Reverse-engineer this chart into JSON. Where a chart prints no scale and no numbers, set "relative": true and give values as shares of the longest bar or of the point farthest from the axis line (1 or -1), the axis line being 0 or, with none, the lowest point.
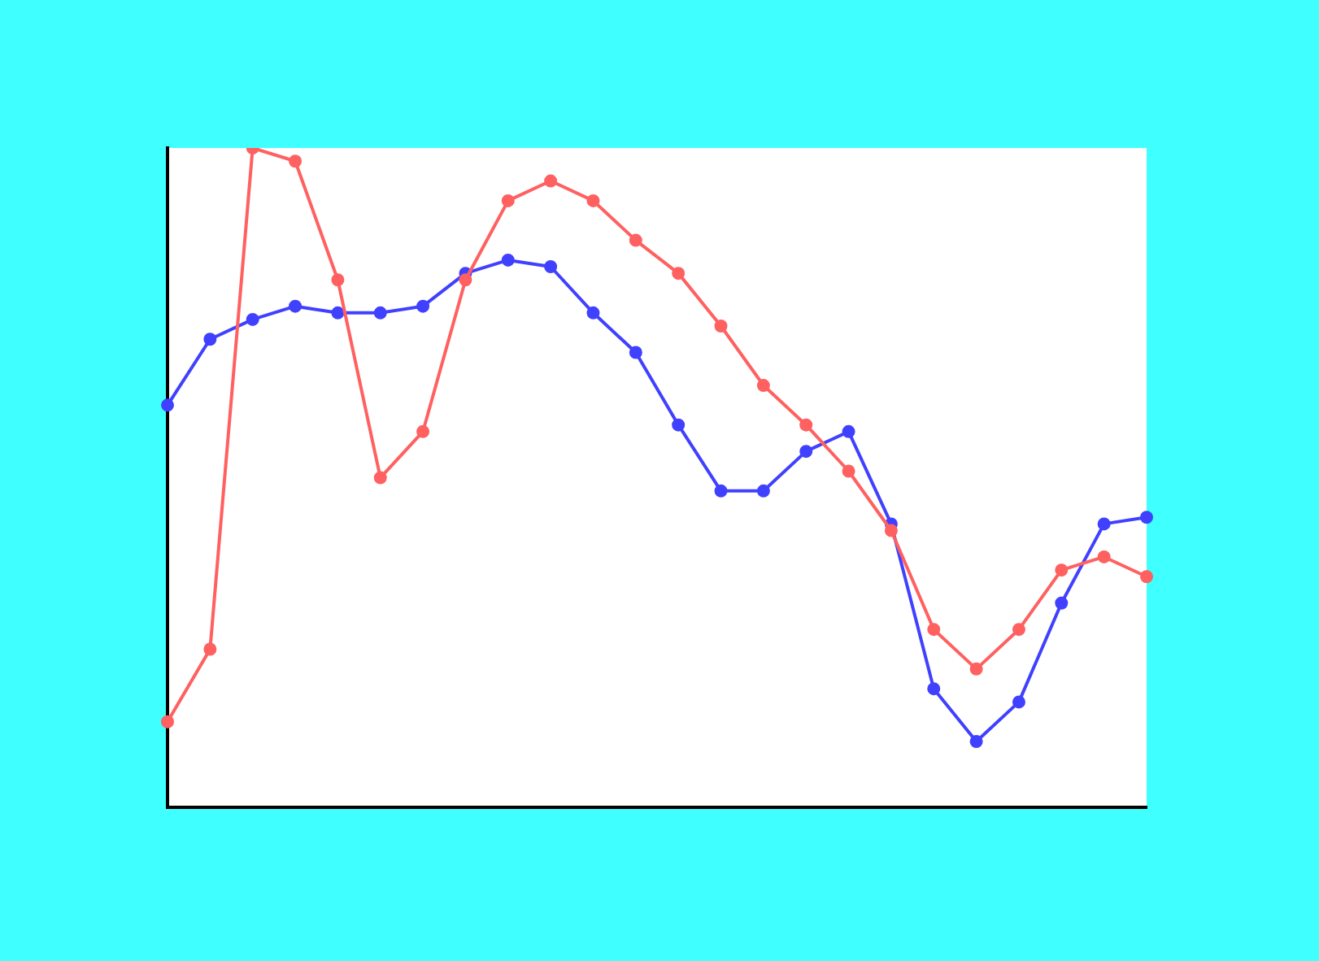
{
  "chart_data": {
    "type": "line",
    "relative": true,
    "categories": [
      null,
      null,
      null,
      null,
      null,
      null,
      null,
      null,
      null,
      null,
      null,
      null,
      null,
      null,
      null,
      null,
      null,
      null,
      null,
      null,
      null,
      null,
      null,
      null
    ],
    "marker": "circle",
    "grid": false,
    "legend": false,
    "series": [
      {
        "color": "#ff6060",
        "values": [
          0.13,
          0.24,
          1.0,
          0.98,
          0.8,
          0.5,
          0.57,
          0.8,
          0.92,
          0.95,
          0.92,
          0.86,
          0.81,
          0.73,
          0.64,
          0.58,
          0.51,
          0.42,
          0.27,
          0.21,
          0.27,
          0.36,
          0.38,
          0.35
        ]
      },
      {
        "color": "#4040ff",
        "values": [
          0.61,
          0.71,
          0.74,
          0.76,
          0.75,
          0.75,
          0.76,
          0.81,
          0.83,
          0.82,
          0.75,
          0.69,
          0.58,
          0.48,
          0.48,
          0.54,
          0.57,
          0.43,
          0.18,
          0.1,
          0.16,
          0.31,
          0.43,
          0.44
        ]
      }
    ]
  }
}
